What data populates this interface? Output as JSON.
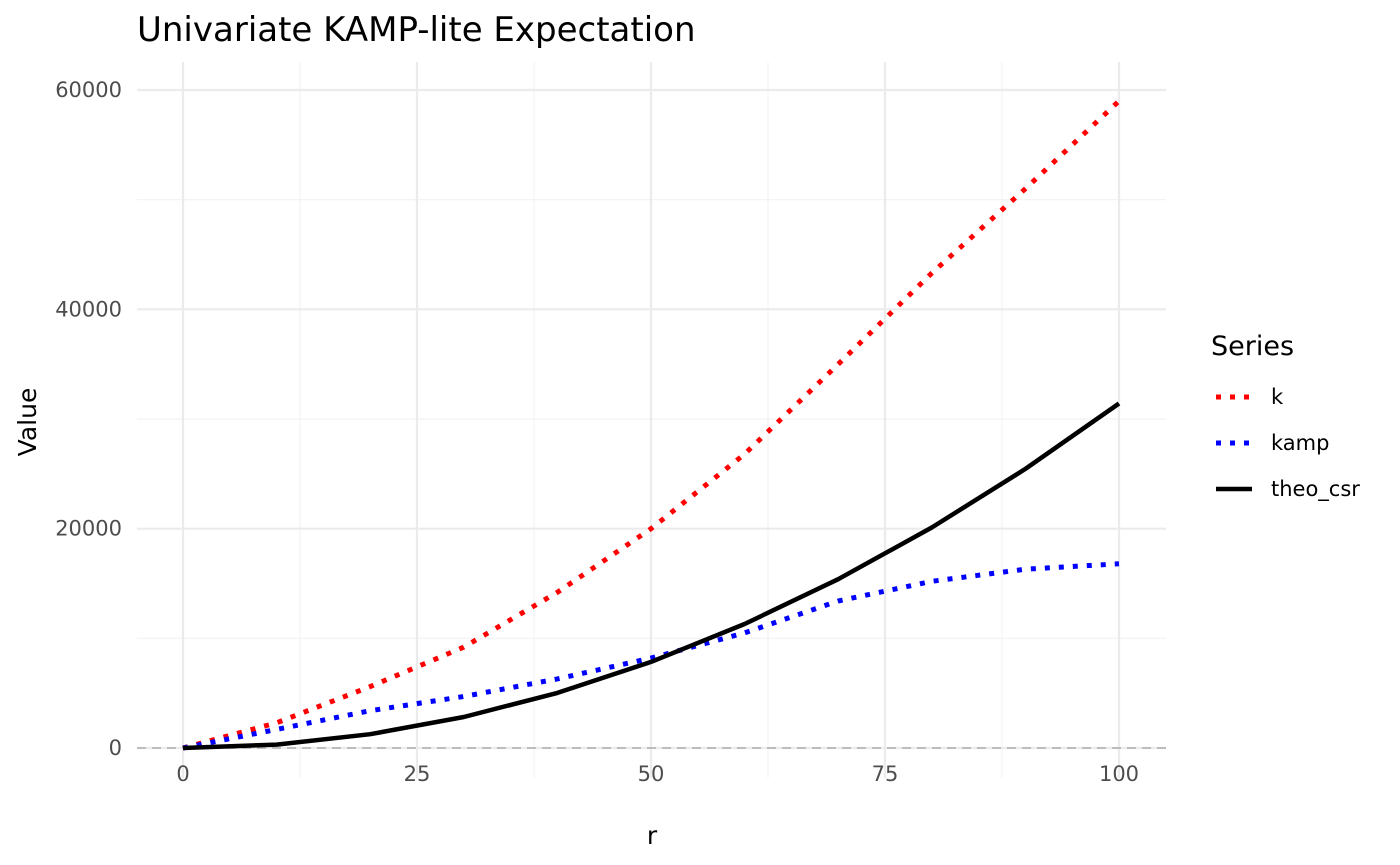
{
  "chart_data": {
    "type": "line",
    "title": "Univariate KAMP-lite Expectation",
    "xlabel": "r",
    "ylabel": "Value",
    "xlim": [
      0,
      100
    ],
    "ylim": [
      0,
      60000
    ],
    "x_ticks": [
      0,
      25,
      50,
      75,
      100
    ],
    "y_ticks": [
      0,
      20000,
      40000,
      60000
    ],
    "x_tick_labels": [
      "0",
      "25",
      "50",
      "75",
      "100"
    ],
    "y_tick_labels": [
      "0",
      "20000",
      "40000",
      "60000"
    ],
    "grid": true,
    "reference_line": {
      "y": 0,
      "style": "dashed",
      "color": "#bdbdbd"
    },
    "legend": {
      "title": "Series",
      "position": "right"
    },
    "x": [
      0,
      10,
      20,
      30,
      40,
      50,
      60,
      70,
      80,
      90,
      100
    ],
    "series": [
      {
        "name": "k",
        "color": "#ff0000",
        "style": "dotted",
        "values": [
          0,
          2300,
          5600,
          9200,
          14200,
          20000,
          26800,
          35000,
          43300,
          51000,
          59000
        ]
      },
      {
        "name": "kamp",
        "color": "#0000ff",
        "style": "dotted",
        "values": [
          0,
          1700,
          3400,
          4700,
          6300,
          8200,
          10500,
          13400,
          15200,
          16300,
          16800
        ]
      },
      {
        "name": "theo_csr",
        "color": "#000000",
        "style": "solid",
        "values": [
          0,
          314,
          1257,
          2827,
          5027,
          7854,
          11310,
          15394,
          20106,
          25447,
          31416
        ]
      }
    ]
  }
}
